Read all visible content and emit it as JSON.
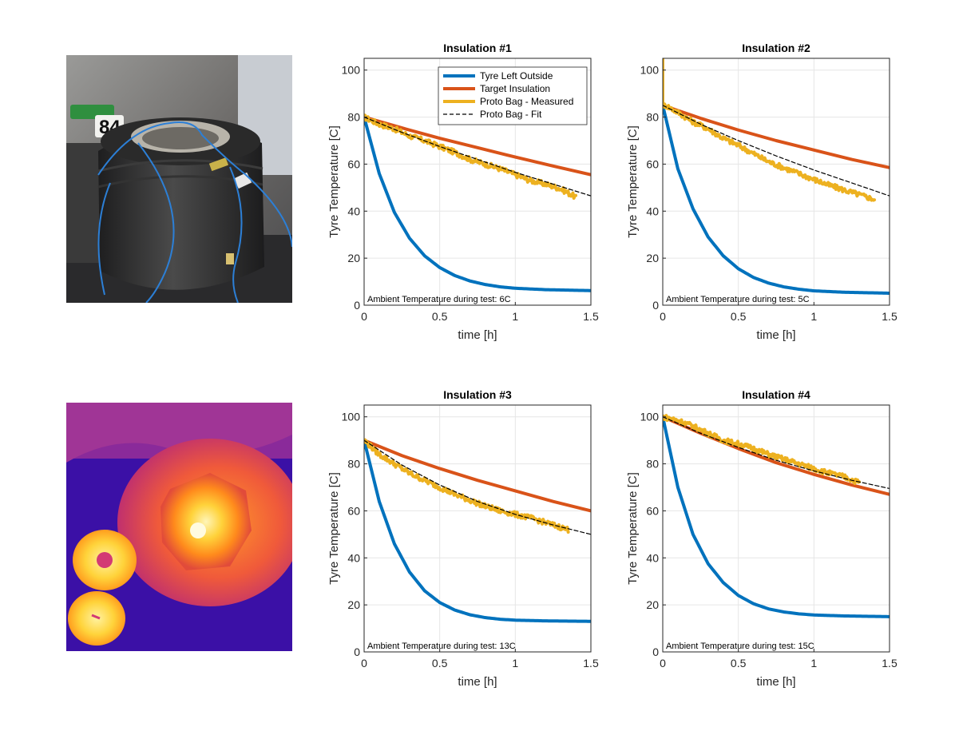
{
  "images": {
    "tyre_photo": {
      "kart_number": "84"
    },
    "thermal_photo": {}
  },
  "colors": {
    "tyre_left_outside": "#0072BD",
    "target_insulation": "#D95319",
    "proto_bag_measured": "#EDB120",
    "proto_bag_fit": "#000000",
    "grid": "#e6e6e6",
    "axis": "#262626"
  },
  "legend": {
    "placement": "top-right",
    "entries": [
      "Tyre Left Outside",
      "Target Insulation",
      "Proto Bag - Measured",
      "Proto Bag - Fit"
    ]
  },
  "chart_data": [
    {
      "type": "line",
      "title": "Insulation #1",
      "xlabel": "time [h]",
      "ylabel": "Tyre Temperature [C]",
      "xlim": [
        0,
        1.5
      ],
      "ylim": [
        0,
        105
      ],
      "xticks": [
        0,
        0.5,
        1,
        1.5
      ],
      "xtick_labels": [
        "0",
        "0.5",
        "1",
        "1.5"
      ],
      "yticks": [
        0,
        20,
        40,
        60,
        80,
        100
      ],
      "ytick_labels": [
        "0",
        "20",
        "40",
        "60",
        "80",
        "100"
      ],
      "grid": true,
      "show_legend": true,
      "annotation": "Ambient Temperature during test: 6C",
      "series": [
        {
          "name": "Tyre Left Outside",
          "x": [
            0,
            0.1,
            0.2,
            0.3,
            0.4,
            0.5,
            0.6,
            0.7,
            0.8,
            0.9,
            1.0,
            1.2,
            1.5
          ],
          "y": [
            80,
            56,
            39.5,
            28.5,
            21,
            16,
            12.6,
            10.3,
            8.8,
            7.8,
            7.2,
            6.6,
            6.2
          ]
        },
        {
          "name": "Target Insulation",
          "x": [
            0,
            0.25,
            0.5,
            0.75,
            1.0,
            1.25,
            1.5
          ],
          "y": [
            80,
            75.4,
            71,
            67,
            63,
            59.2,
            55.5
          ]
        },
        {
          "name": "Proto Bag - Measured",
          "x": [
            0,
            0.1,
            0.2,
            0.3,
            0.4,
            0.5,
            0.6,
            0.7,
            0.8,
            0.9,
            1.0,
            1.1,
            1.2,
            1.3,
            1.4
          ],
          "y": [
            80,
            77,
            75,
            72,
            70,
            67.5,
            65,
            62,
            60,
            58,
            55.5,
            53,
            51.5,
            49.5,
            46
          ]
        },
        {
          "name": "Proto Bag - Fit",
          "x": [
            0,
            0.25,
            0.5,
            0.75,
            1.0,
            1.25,
            1.5
          ],
          "y": [
            80,
            73.5,
            67.5,
            62,
            56.5,
            51.5,
            46.5
          ]
        }
      ]
    },
    {
      "type": "line",
      "title": "Insulation #2",
      "xlabel": "time [h]",
      "ylabel": "Tyre Temperature [C]",
      "xlim": [
        0,
        1.5
      ],
      "ylim": [
        0,
        105
      ],
      "xticks": [
        0,
        0.5,
        1,
        1.5
      ],
      "xtick_labels": [
        "0",
        "0.5",
        "1",
        "1.5"
      ],
      "yticks": [
        0,
        20,
        40,
        60,
        80,
        100
      ],
      "ytick_labels": [
        "0",
        "20",
        "40",
        "60",
        "80",
        "100"
      ],
      "grid": true,
      "show_legend": false,
      "annotation": "Ambient Temperature during test: 5C",
      "series": [
        {
          "name": "Tyre Left Outside",
          "x": [
            0,
            0.1,
            0.2,
            0.3,
            0.4,
            0.5,
            0.6,
            0.7,
            0.8,
            0.9,
            1.0,
            1.2,
            1.5
          ],
          "y": [
            85,
            58,
            41,
            29,
            21,
            15.5,
            11.8,
            9.4,
            7.8,
            6.8,
            6.1,
            5.5,
            5.1
          ]
        },
        {
          "name": "Target Insulation",
          "x": [
            0,
            0.25,
            0.5,
            0.75,
            1.0,
            1.25,
            1.5
          ],
          "y": [
            85,
            79.5,
            74.5,
            70,
            66,
            62,
            58.5
          ]
        },
        {
          "name": "Proto Bag - Measured",
          "x": [
            0,
            0,
            0.02,
            0.1,
            0.2,
            0.3,
            0.4,
            0.5,
            0.6,
            0.7,
            0.8,
            0.9,
            1.0,
            1.1,
            1.2,
            1.3,
            1.4
          ],
          "y": [
            105,
            85,
            85,
            82,
            78,
            75,
            71,
            68,
            64.5,
            61,
            58.5,
            56,
            53.5,
            51,
            49,
            47,
            45
          ]
        },
        {
          "name": "Proto Bag - Fit",
          "x": [
            0,
            0.25,
            0.5,
            0.75,
            1.0,
            1.25,
            1.5
          ],
          "y": [
            85,
            77,
            70,
            63.5,
            57.5,
            52,
            46.5
          ]
        }
      ]
    },
    {
      "type": "line",
      "title": "Insulation #3",
      "xlabel": "time [h]",
      "ylabel": "Tyre Temperature [C]",
      "xlim": [
        0,
        1.5
      ],
      "ylim": [
        0,
        105
      ],
      "xticks": [
        0,
        0.5,
        1,
        1.5
      ],
      "xtick_labels": [
        "0",
        "0.5",
        "1",
        "1.5"
      ],
      "yticks": [
        0,
        20,
        40,
        60,
        80,
        100
      ],
      "ytick_labels": [
        "0",
        "20",
        "40",
        "60",
        "80",
        "100"
      ],
      "grid": true,
      "show_legend": false,
      "annotation": "Ambient Temperature during test: 13C",
      "series": [
        {
          "name": "Tyre Left Outside",
          "x": [
            0,
            0.1,
            0.2,
            0.3,
            0.4,
            0.5,
            0.6,
            0.7,
            0.8,
            0.9,
            1.0,
            1.2,
            1.5
          ],
          "y": [
            90,
            64,
            46,
            34,
            26,
            21,
            17.8,
            15.8,
            14.6,
            13.9,
            13.5,
            13.2,
            13
          ]
        },
        {
          "name": "Target Insulation",
          "x": [
            0,
            0.25,
            0.5,
            0.75,
            1.0,
            1.25,
            1.5
          ],
          "y": [
            90,
            83.5,
            78,
            73,
            68.5,
            64,
            60
          ]
        },
        {
          "name": "Proto Bag - Measured",
          "x": [
            0,
            0.1,
            0.2,
            0.3,
            0.4,
            0.5,
            0.6,
            0.7,
            0.8,
            0.9,
            1.0,
            1.1,
            1.2,
            1.3,
            1.35
          ],
          "y": [
            90,
            84,
            80,
            76,
            73,
            70,
            67,
            64.5,
            62,
            60,
            58.5,
            57,
            55,
            53,
            52
          ]
        },
        {
          "name": "Proto Bag - Fit",
          "x": [
            0,
            0.25,
            0.5,
            0.75,
            1.0,
            1.25,
            1.5
          ],
          "y": [
            90,
            79.5,
            71,
            64,
            58.5,
            54,
            50
          ]
        }
      ]
    },
    {
      "type": "line",
      "title": "Insulation #4",
      "xlabel": "time [h]",
      "ylabel": "Tyre Temperature [C]",
      "xlim": [
        0,
        1.5
      ],
      "ylim": [
        0,
        105
      ],
      "xticks": [
        0,
        0.5,
        1,
        1.5
      ],
      "xtick_labels": [
        "0",
        "0.5",
        "1",
        "1.5"
      ],
      "yticks": [
        0,
        20,
        40,
        60,
        80,
        100
      ],
      "ytick_labels": [
        "0",
        "20",
        "40",
        "60",
        "80",
        "100"
      ],
      "grid": true,
      "show_legend": false,
      "annotation": "Ambient Temperature during test: 15C",
      "series": [
        {
          "name": "Tyre Left Outside",
          "x": [
            0,
            0.1,
            0.2,
            0.3,
            0.4,
            0.5,
            0.6,
            0.7,
            0.8,
            0.9,
            1.0,
            1.2,
            1.5
          ],
          "y": [
            100,
            70,
            50,
            37.5,
            29.5,
            24,
            20.5,
            18.3,
            17,
            16.2,
            15.7,
            15.3,
            15
          ]
        },
        {
          "name": "Target Insulation",
          "x": [
            0,
            0.25,
            0.5,
            0.75,
            1.0,
            1.25,
            1.5
          ],
          "y": [
            100,
            93,
            86.5,
            80.5,
            75.5,
            71,
            67
          ]
        },
        {
          "name": "Proto Bag - Measured",
          "x": [
            0,
            0.1,
            0.2,
            0.3,
            0.4,
            0.5,
            0.6,
            0.7,
            0.8,
            0.9,
            1.0,
            1.1,
            1.2,
            1.3
          ],
          "y": [
            100,
            98.5,
            96,
            93,
            90,
            88.5,
            86.5,
            84,
            82,
            80,
            78,
            76,
            74.5,
            72
          ]
        },
        {
          "name": "Proto Bag - Fit",
          "x": [
            0,
            0.25,
            0.5,
            0.75,
            1.0,
            1.25,
            1.5
          ],
          "y": [
            100,
            93,
            87,
            81.5,
            77,
            73,
            69.5
          ]
        }
      ]
    }
  ]
}
